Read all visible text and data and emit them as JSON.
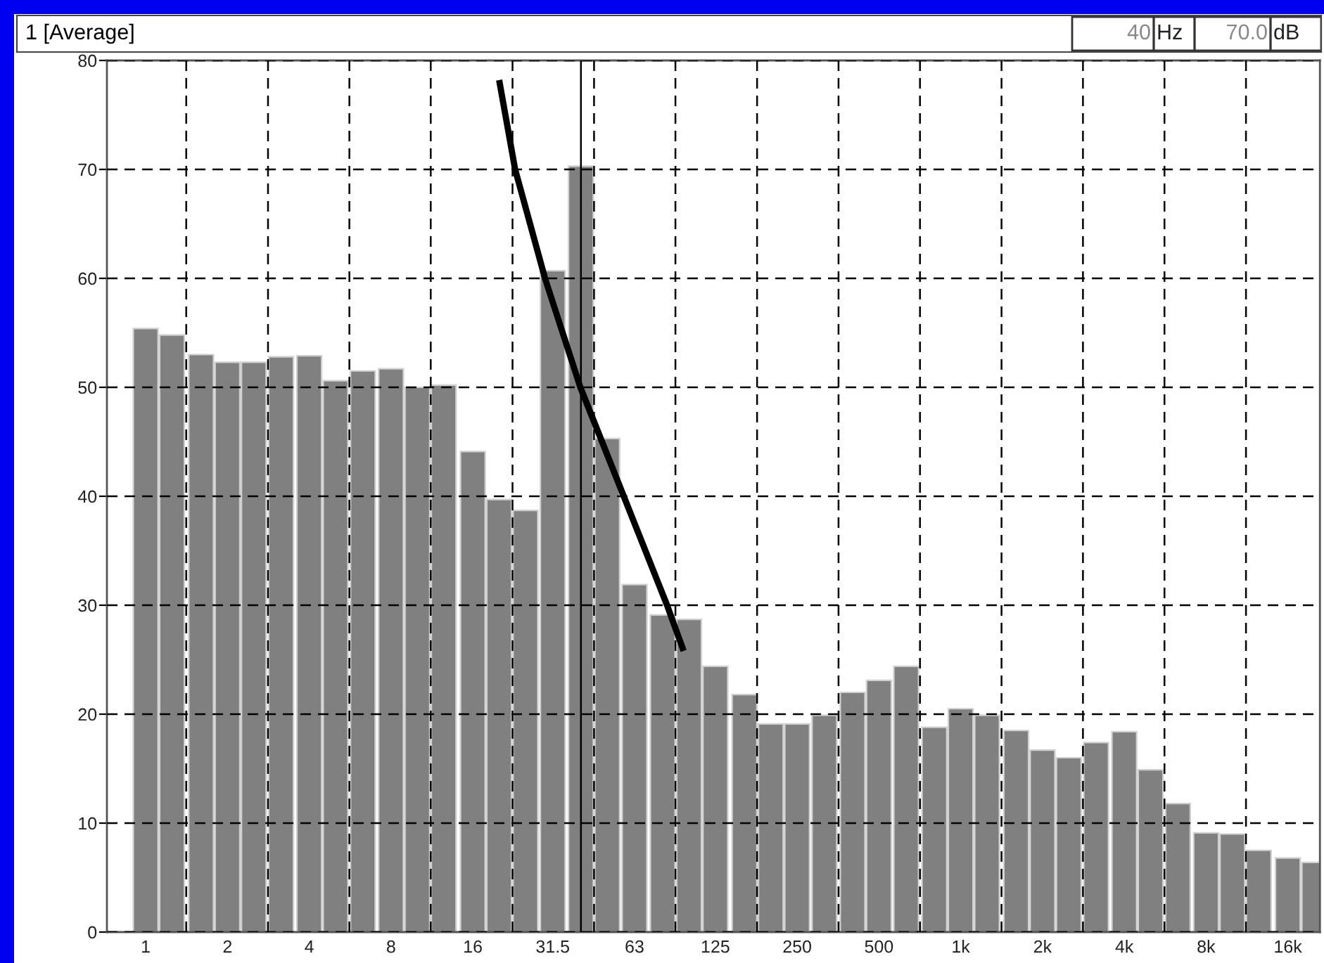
{
  "chart_data": {
    "type": "bar",
    "title": "1 [Average]",
    "annotations": [
      "40",
      "Hz",
      "70.0",
      "dB"
    ],
    "x": [
      1,
      1.25,
      1.6,
      2,
      2.5,
      3.15,
      4,
      5,
      6.3,
      8,
      10,
      12.5,
      16,
      20,
      25,
      31.5,
      40,
      50,
      63,
      80,
      100,
      125,
      160,
      200,
      250,
      315,
      400,
      500,
      630,
      800,
      1000,
      1250,
      1600,
      2000,
      2500,
      3150,
      4000,
      5000,
      6300,
      8000,
      10000,
      12500,
      16000,
      20000
    ],
    "series": [
      {
        "color": "#808080",
        "values": [
          55.4,
          54.8,
          53.0,
          52.3,
          52.3,
          52.8,
          52.9,
          50.6,
          51.5,
          51.7,
          50.0,
          50.2,
          44.1,
          39.7,
          38.7,
          60.7,
          70.3,
          45.3,
          31.9,
          29.1,
          28.7,
          24.4,
          21.8,
          19.1,
          19.1,
          19.9,
          22.0,
          23.1,
          24.4,
          18.8,
          20.5,
          19.9,
          18.5,
          16.7,
          16.0,
          17.4,
          18.4,
          14.9,
          11.8,
          9.1,
          9.0,
          7.5,
          6.8,
          6.4
        ]
      },
      {
        "type": "line",
        "color": "#000000",
        "x": [
          20,
          22.9,
          29.5,
          39.8,
          57.5,
          83,
          95.5
        ],
        "values": [
          78.2,
          70,
          60,
          50,
          40,
          30,
          25.8
        ]
      }
    ],
    "log": "x",
    "xlim": [
      0.72,
      21000
    ],
    "xticks": [
      1,
      {
        "value": 1.41,
        "label": null
      },
      2,
      {
        "value": 2.82,
        "label": null
      },
      4,
      {
        "value": 5.62,
        "label": null
      },
      8,
      {
        "value": 11.2,
        "label": null
      },
      16,
      {
        "value": 22.4,
        "label": null
      },
      31.5,
      {
        "value": 44.7,
        "label": null
      },
      63,
      {
        "value": 89.1,
        "label": null
      },
      125,
      {
        "value": 178,
        "label": null
      },
      250,
      {
        "value": 355,
        "label": null
      },
      500,
      {
        "value": 708,
        "label": null
      },
      {
        "value": 1000,
        "label": "1k"
      },
      {
        "value": 1413,
        "label": null
      },
      {
        "value": 2000,
        "label": "2k"
      },
      {
        "value": 2818,
        "label": null
      },
      {
        "value": 4000,
        "label": "4k"
      },
      {
        "value": 5623,
        "label": null
      },
      {
        "value": 8000,
        "label": "8k"
      },
      {
        "value": 11220,
        "label": null
      },
      {
        "value": 16000,
        "label": "16k"
      }
    ],
    "ylim": [
      0,
      80
    ],
    "yticks": [
      0,
      10,
      20,
      30,
      40,
      50,
      60,
      70,
      80
    ],
    "grid": true,
    "ref_lines": [
      {
        "axis": "x",
        "value": 40,
        "color": "#000000"
      }
    ]
  }
}
